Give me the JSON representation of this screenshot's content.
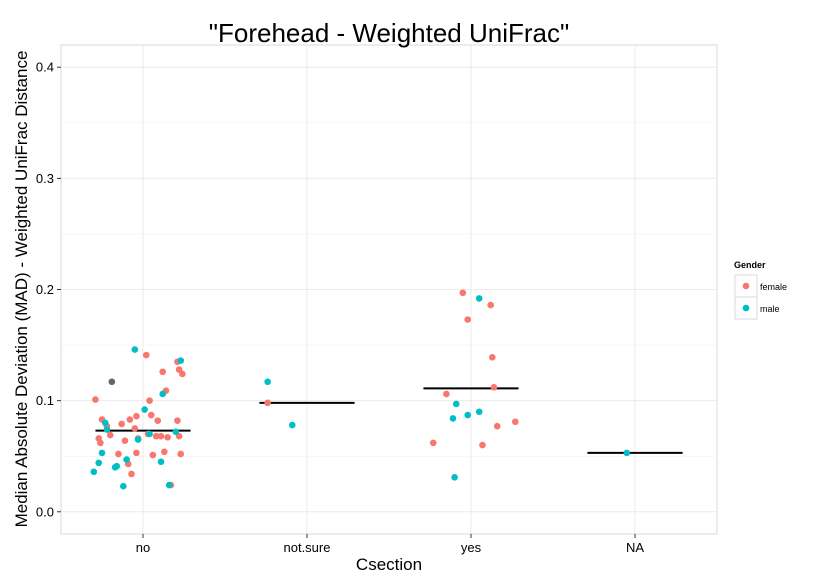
{
  "chart_data": {
    "type": "scatter",
    "title": "\"Forehead - Weighted UniFrac\"",
    "xlabel": "Csection",
    "ylabel": "Median Absolute Deviation (MAD) - Weighted UniFrac Distance",
    "categories": [
      "no",
      "not.sure",
      "yes",
      "NA"
    ],
    "ylim": [
      -0.02,
      0.42
    ],
    "yticks": [
      0.0,
      0.1,
      0.2,
      0.3,
      0.4
    ],
    "ytick_labels": [
      "0.0",
      "0.1",
      "0.2",
      "0.3",
      "0.4"
    ],
    "grid": true,
    "legend": {
      "title": "Gender",
      "position": "right",
      "entries": [
        {
          "label": "female",
          "color": "#F8766D"
        },
        {
          "label": "male",
          "color": "#00BFC4"
        }
      ]
    },
    "na_color": "#666666",
    "medians": [
      {
        "category": "no",
        "value": 0.073
      },
      {
        "category": "not.sure",
        "value": 0.098
      },
      {
        "category": "yes",
        "value": 0.111
      },
      {
        "category": "NA",
        "value": 0.053
      }
    ],
    "series": [
      {
        "name": "female",
        "color": "#F8766D",
        "points": [
          {
            "category": "no",
            "jitter": -0.29,
            "value": 0.101
          },
          {
            "category": "no",
            "jitter": -0.25,
            "value": 0.083
          },
          {
            "category": "no",
            "jitter": -0.22,
            "value": 0.077
          },
          {
            "category": "no",
            "jitter": -0.27,
            "value": 0.066
          },
          {
            "category": "no",
            "jitter": -0.26,
            "value": 0.062
          },
          {
            "category": "no",
            "jitter": -0.2,
            "value": 0.069
          },
          {
            "category": "no",
            "jitter": -0.13,
            "value": 0.079
          },
          {
            "category": "no",
            "jitter": -0.11,
            "value": 0.064
          },
          {
            "category": "no",
            "jitter": -0.15,
            "value": 0.052
          },
          {
            "category": "no",
            "jitter": -0.09,
            "value": 0.043
          },
          {
            "category": "no",
            "jitter": -0.07,
            "value": 0.034
          },
          {
            "category": "no",
            "jitter": -0.08,
            "value": 0.083
          },
          {
            "category": "no",
            "jitter": -0.04,
            "value": 0.086
          },
          {
            "category": "no",
            "jitter": -0.05,
            "value": 0.075
          },
          {
            "category": "no",
            "jitter": -0.03,
            "value": 0.066
          },
          {
            "category": "no",
            "jitter": -0.04,
            "value": 0.053
          },
          {
            "category": "no",
            "jitter": 0.02,
            "value": 0.141
          },
          {
            "category": "no",
            "jitter": 0.04,
            "value": 0.1
          },
          {
            "category": "no",
            "jitter": 0.05,
            "value": 0.087
          },
          {
            "category": "no",
            "jitter": 0.03,
            "value": 0.07
          },
          {
            "category": "no",
            "jitter": 0.06,
            "value": 0.051
          },
          {
            "category": "no",
            "jitter": 0.09,
            "value": 0.082
          },
          {
            "category": "no",
            "jitter": 0.08,
            "value": 0.068
          },
          {
            "category": "no",
            "jitter": 0.11,
            "value": 0.068
          },
          {
            "category": "no",
            "jitter": 0.12,
            "value": 0.126
          },
          {
            "category": "no",
            "jitter": 0.14,
            "value": 0.109
          },
          {
            "category": "no",
            "jitter": 0.13,
            "value": 0.054
          },
          {
            "category": "no",
            "jitter": 0.15,
            "value": 0.067
          },
          {
            "category": "no",
            "jitter": 0.17,
            "value": 0.024
          },
          {
            "category": "no",
            "jitter": 0.21,
            "value": 0.135
          },
          {
            "category": "no",
            "jitter": 0.22,
            "value": 0.128
          },
          {
            "category": "no",
            "jitter": 0.24,
            "value": 0.124
          },
          {
            "category": "no",
            "jitter": 0.21,
            "value": 0.082
          },
          {
            "category": "no",
            "jitter": 0.22,
            "value": 0.068
          },
          {
            "category": "no",
            "jitter": 0.23,
            "value": 0.052
          },
          {
            "category": "not.sure",
            "jitter": -0.24,
            "value": 0.098
          },
          {
            "category": "yes",
            "jitter": -0.23,
            "value": 0.062
          },
          {
            "category": "yes",
            "jitter": -0.15,
            "value": 0.106
          },
          {
            "category": "yes",
            "jitter": -0.05,
            "value": 0.197
          },
          {
            "category": "yes",
            "jitter": -0.02,
            "value": 0.173
          },
          {
            "category": "yes",
            "jitter": 0.07,
            "value": 0.06
          },
          {
            "category": "yes",
            "jitter": 0.12,
            "value": 0.186
          },
          {
            "category": "yes",
            "jitter": 0.13,
            "value": 0.139
          },
          {
            "category": "yes",
            "jitter": 0.14,
            "value": 0.112
          },
          {
            "category": "yes",
            "jitter": 0.16,
            "value": 0.077
          },
          {
            "category": "yes",
            "jitter": 0.27,
            "value": 0.081
          }
        ]
      },
      {
        "name": "male",
        "color": "#00BFC4",
        "points": [
          {
            "category": "no",
            "jitter": -0.3,
            "value": 0.036
          },
          {
            "category": "no",
            "jitter": -0.27,
            "value": 0.044
          },
          {
            "category": "no",
            "jitter": -0.25,
            "value": 0.053
          },
          {
            "category": "no",
            "jitter": -0.23,
            "value": 0.08
          },
          {
            "category": "no",
            "jitter": -0.22,
            "value": 0.074
          },
          {
            "category": "no",
            "jitter": -0.17,
            "value": 0.04
          },
          {
            "category": "no",
            "jitter": -0.16,
            "value": 0.041
          },
          {
            "category": "no",
            "jitter": -0.12,
            "value": 0.023
          },
          {
            "category": "no",
            "jitter": -0.1,
            "value": 0.047
          },
          {
            "category": "no",
            "jitter": -0.05,
            "value": 0.146
          },
          {
            "category": "no",
            "jitter": -0.03,
            "value": 0.065
          },
          {
            "category": "no",
            "jitter": 0.01,
            "value": 0.092
          },
          {
            "category": "no",
            "jitter": 0.04,
            "value": 0.07
          },
          {
            "category": "no",
            "jitter": 0.11,
            "value": 0.045
          },
          {
            "category": "no",
            "jitter": 0.12,
            "value": 0.106
          },
          {
            "category": "no",
            "jitter": 0.16,
            "value": 0.024
          },
          {
            "category": "no",
            "jitter": 0.2,
            "value": 0.072
          },
          {
            "category": "no",
            "jitter": 0.23,
            "value": 0.136
          },
          {
            "category": "not.sure",
            "jitter": -0.24,
            "value": 0.117
          },
          {
            "category": "not.sure",
            "jitter": -0.09,
            "value": 0.078
          },
          {
            "category": "yes",
            "jitter": -0.1,
            "value": 0.031
          },
          {
            "category": "yes",
            "jitter": -0.09,
            "value": 0.097
          },
          {
            "category": "yes",
            "jitter": -0.11,
            "value": 0.084
          },
          {
            "category": "yes",
            "jitter": -0.02,
            "value": 0.087
          },
          {
            "category": "yes",
            "jitter": 0.05,
            "value": 0.192
          },
          {
            "category": "yes",
            "jitter": 0.05,
            "value": 0.09
          },
          {
            "category": "NA",
            "jitter": -0.05,
            "value": 0.053
          }
        ]
      },
      {
        "name": "",
        "color": "#666666",
        "points": [
          {
            "category": "no",
            "jitter": -0.19,
            "value": 0.117
          }
        ]
      }
    ]
  }
}
